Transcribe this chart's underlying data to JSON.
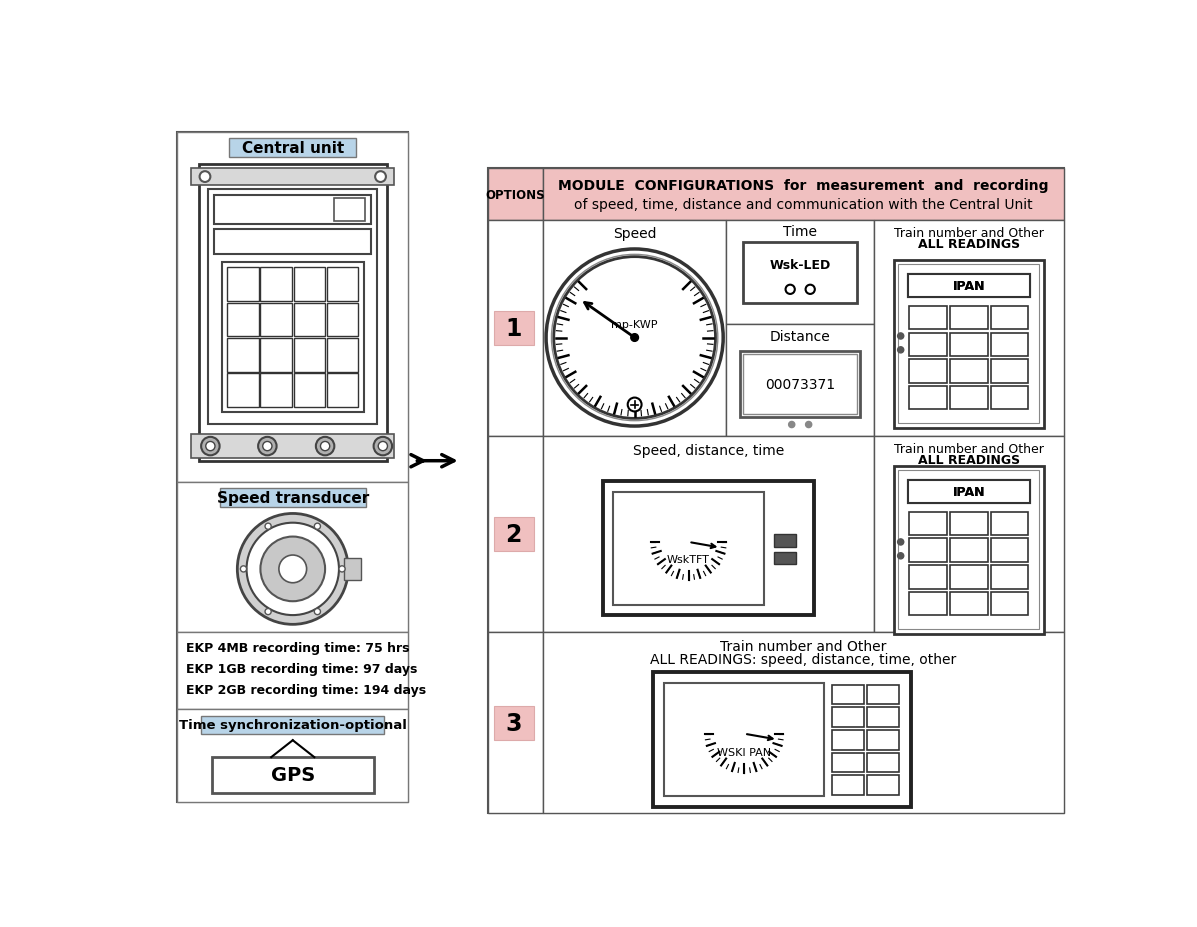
{
  "bg_color": "#ffffff",
  "ekp_lines": [
    "EKP 4MB recording time: 75 hrs",
    "EKP 1GB recording time: 97 days",
    "EKP 2GB recording time: 194 days"
  ],
  "header_bg": "#f0c0c0",
  "number_bg": "#f0c0c0",
  "header_line1": "MODULE  CONFIGURATIONS  for  measurement  and  recording",
  "header_line2": "of speed, time, distance and communication with the Central Unit",
  "options_text": "OPTIONS",
  "row1_labels": [
    "Speed",
    "Time",
    "Distance",
    "Train number and Other",
    "ALL READINGS"
  ],
  "row2_labels": [
    "Speed, distance, time",
    "Train number and Other",
    "ALL READINGS"
  ],
  "row3_labels": [
    "Train number and Other",
    "ALL READINGS: speed, distance, time, other"
  ],
  "badge_bg": "#b8d4e8"
}
